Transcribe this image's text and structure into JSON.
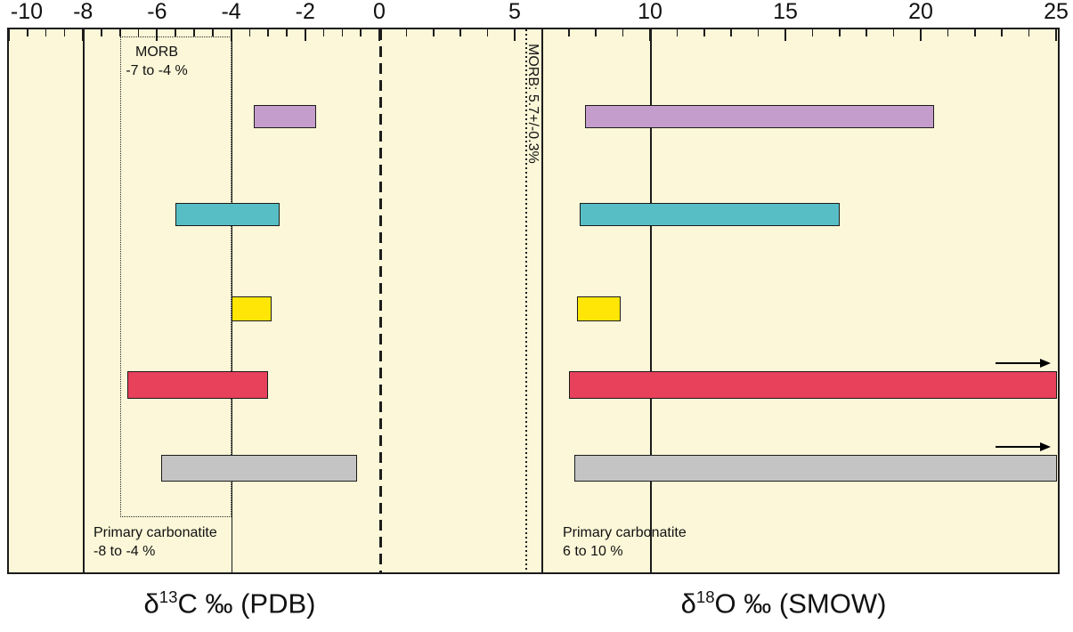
{
  "colors": {
    "plot_background": "#FBF7D8",
    "line": "#1c1c1c",
    "purple": "#C59DCC",
    "teal": "#57BEC6",
    "yellow": "#FFE607",
    "red": "#E8415C",
    "gray": "#C4C4C4"
  },
  "annotations": {
    "morb_carbon": {
      "line1": "MORB",
      "line2": "-7 to -4 %"
    },
    "morb_oxygen": {
      "text": "MORB: 5.7+/-0.3%"
    },
    "primary_carbonatite_carbon": {
      "line1": "Primary carbonatite",
      "line2": "-8 to -4 %"
    },
    "primary_carbonatite_oxygen": {
      "line1": "Primary carbonatite",
      "line2": "6 to 10 %"
    }
  },
  "axis_titles": {
    "carbon": {
      "delta": "δ",
      "superscript": "13",
      "rest": "C ‰ (PDB)"
    },
    "oxygen": {
      "delta": "δ",
      "superscript": "18",
      "rest": "O ‰ (SMOW)"
    }
  },
  "chart_data": {
    "type": "bar",
    "subtype": "horizontal-range-bars",
    "description": "Stable isotope composition ranges for five sample groups: δ13C (PDB) on the left scale and δ18O (SMOW) on the right scale, compared with MORB and primary carbonatite reference fields. Arrows mark ranges extending beyond the right edge of the scale.",
    "axes": {
      "carbon": {
        "title": "δ13C ‰ (PDB)",
        "range": [
          -10,
          0
        ],
        "major_ticks": [
          -10,
          -8,
          -6,
          -4,
          -2,
          0
        ],
        "minor_step": 0.5
      },
      "oxygen": {
        "title": "δ18O ‰ (SMOW)",
        "range": [
          0,
          25
        ],
        "major_ticks": [
          5,
          10,
          15,
          20,
          25
        ],
        "minor_step": 1
      }
    },
    "reference": {
      "morb_carbon": {
        "label": "MORB -7 to -4 %",
        "from": -7,
        "to": -4,
        "style": "dotted-box"
      },
      "primary_carbonatite_carbon": {
        "label": "Primary carbonatite -8 to -4 %",
        "from": -8,
        "to": -4,
        "style": "solid-lines"
      },
      "zero_line": 0,
      "morb_oxygen": {
        "label": "MORB: 5.7+/-0.3%",
        "from": 5.4,
        "to": 6.0,
        "style": "dotted-lines"
      },
      "primary_carbonatite_oxygen": {
        "label": "Primary carbonatite 6 to 10 %",
        "from": 6,
        "to": 10,
        "style": "solid-lines"
      }
    },
    "rows": [
      {
        "name": "group-1",
        "color_key": "purple",
        "carbon": [
          -3.4,
          -1.7
        ],
        "oxygen": [
          7.6,
          20.5
        ],
        "oxygen_open_ended": false
      },
      {
        "name": "group-2",
        "color_key": "teal",
        "carbon": [
          -5.5,
          -2.7
        ],
        "oxygen": [
          7.4,
          17.0
        ],
        "oxygen_open_ended": false
      },
      {
        "name": "group-3",
        "color_key": "yellow",
        "carbon": [
          -4.0,
          -2.9
        ],
        "oxygen": [
          7.3,
          8.9
        ],
        "oxygen_open_ended": false
      },
      {
        "name": "group-4",
        "color_key": "red",
        "carbon": [
          -6.8,
          -3.0
        ],
        "oxygen": [
          7.0,
          25.5
        ],
        "oxygen_open_ended": true
      },
      {
        "name": "group-5",
        "color_key": "gray",
        "carbon": [
          -5.9,
          -0.6
        ],
        "oxygen": [
          7.2,
          25.5
        ],
        "oxygen_open_ended": true
      }
    ]
  }
}
